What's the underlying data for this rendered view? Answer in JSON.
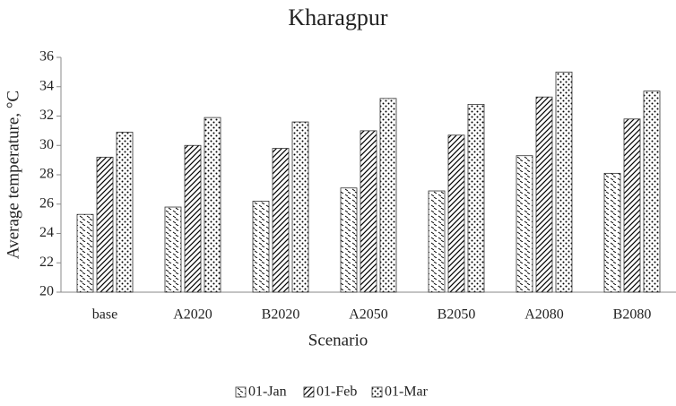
{
  "chart_data": {
    "type": "bar",
    "title": "Kharagpur",
    "x_label": "Scenario",
    "y_label": "Average temperature, °C",
    "categories": [
      "base",
      "A2020",
      "B2020",
      "A2050",
      "B2050",
      "A2080",
      "B2080"
    ],
    "series": [
      {
        "name": "01-Jan",
        "color": "#000000",
        "pattern": "dash",
        "values": [
          25.3,
          25.8,
          26.2,
          27.1,
          26.9,
          29.3,
          28.1
        ]
      },
      {
        "name": "01-Feb",
        "color": "#000000",
        "pattern": "hatch",
        "values": [
          29.2,
          30.0,
          29.8,
          31.0,
          30.7,
          33.3,
          31.8
        ]
      },
      {
        "name": "01-Mar",
        "color": "#000000",
        "pattern": "dots",
        "values": [
          30.9,
          31.9,
          31.6,
          33.2,
          32.8,
          35.0,
          33.7
        ]
      }
    ],
    "ylim": [
      20,
      36
    ],
    "yticks": [
      20,
      22,
      24,
      26,
      28,
      30,
      32,
      34,
      36
    ],
    "grid": false,
    "legend": "bottom"
  }
}
